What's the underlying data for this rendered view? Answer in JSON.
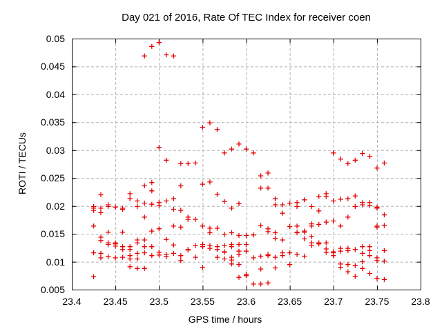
{
  "chart_data": {
    "type": "scatter",
    "title": "Day 021 of 2016, Rate Of TEC Index for receiver coen",
    "xlabel": "GPS time / hours",
    "ylabel": "ROTI / TECUs",
    "xlim": [
      23.4,
      23.8
    ],
    "ylim": [
      0.005,
      0.05
    ],
    "xticks": [
      23.4,
      23.45,
      23.5,
      23.55,
      23.6,
      23.65,
      23.7,
      23.75,
      23.8
    ],
    "xtick_labels": [
      "23.4",
      "23.45",
      "23.5",
      "23.55",
      "23.6",
      "23.65",
      "23.7",
      "23.75",
      "23.8"
    ],
    "yticks": [
      0.005,
      0.01,
      0.015,
      0.02,
      0.025,
      0.03,
      0.035,
      0.04,
      0.045,
      0.05
    ],
    "ytick_labels": [
      "0.005",
      "0.01",
      "0.015",
      "0.02",
      "0.025",
      "0.03",
      "0.035",
      "0.04",
      "0.045",
      "0.05"
    ],
    "grid": true,
    "legend": "none",
    "marker": "plus",
    "colors": {
      "points": "#e60000",
      "grid": "#b0b0b0",
      "axis": "#000000",
      "text": "#000000",
      "background": "#ffffff"
    },
    "series": [
      {
        "name": "ROTI",
        "points": [
          [
            23.425,
            0.0199
          ],
          [
            23.425,
            0.0196
          ],
          [
            23.425,
            0.0192
          ],
          [
            23.425,
            0.0164
          ],
          [
            23.425,
            0.0116
          ],
          [
            23.425,
            0.0073
          ],
          [
            23.4333,
            0.022
          ],
          [
            23.4333,
            0.0196
          ],
          [
            23.4333,
            0.0188
          ],
          [
            23.4333,
            0.0144
          ],
          [
            23.4333,
            0.0138
          ],
          [
            23.4333,
            0.0115
          ],
          [
            23.4333,
            0.0107
          ],
          [
            23.4417,
            0.0202
          ],
          [
            23.4417,
            0.0199
          ],
          [
            23.4417,
            0.0153
          ],
          [
            23.4417,
            0.0134
          ],
          [
            23.4417,
            0.0131
          ],
          [
            23.4417,
            0.0109
          ],
          [
            23.45,
            0.0198
          ],
          [
            23.45,
            0.0134
          ],
          [
            23.45,
            0.0132
          ],
          [
            23.45,
            0.0128
          ],
          [
            23.45,
            0.0107
          ],
          [
            23.4583,
            0.0196
          ],
          [
            23.4583,
            0.0194
          ],
          [
            23.4583,
            0.0153
          ],
          [
            23.4583,
            0.0127
          ],
          [
            23.4583,
            0.0122
          ],
          [
            23.4583,
            0.0108
          ],
          [
            23.4667,
            0.0222
          ],
          [
            23.4667,
            0.0213
          ],
          [
            23.4667,
            0.0127
          ],
          [
            23.4667,
            0.0122
          ],
          [
            23.4667,
            0.0111
          ],
          [
            23.4667,
            0.0105
          ],
          [
            23.4667,
            0.0091
          ],
          [
            23.475,
            0.0209
          ],
          [
            23.475,
            0.0199
          ],
          [
            23.475,
            0.0139
          ],
          [
            23.475,
            0.0134
          ],
          [
            23.475,
            0.0115
          ],
          [
            23.475,
            0.0105
          ],
          [
            23.475,
            0.0088
          ],
          [
            23.4833,
            0.0469
          ],
          [
            23.4833,
            0.0236
          ],
          [
            23.4833,
            0.0205
          ],
          [
            23.4833,
            0.018
          ],
          [
            23.4833,
            0.0139
          ],
          [
            23.4833,
            0.0127
          ],
          [
            23.4833,
            0.0116
          ],
          [
            23.4833,
            0.0088
          ],
          [
            23.4917,
            0.0486
          ],
          [
            23.4917,
            0.0242
          ],
          [
            23.4917,
            0.0227
          ],
          [
            23.4917,
            0.0203
          ],
          [
            23.4917,
            0.0155
          ],
          [
            23.4917,
            0.0127
          ],
          [
            23.4917,
            0.0111
          ],
          [
            23.5,
            0.0493
          ],
          [
            23.5,
            0.0305
          ],
          [
            23.5,
            0.0206
          ],
          [
            23.5,
            0.0201
          ],
          [
            23.5,
            0.0159
          ],
          [
            23.5,
            0.0117
          ],
          [
            23.5,
            0.0112
          ],
          [
            23.5083,
            0.0471
          ],
          [
            23.5083,
            0.0282
          ],
          [
            23.5083,
            0.0209
          ],
          [
            23.5083,
            0.014
          ],
          [
            23.5083,
            0.0113
          ],
          [
            23.5083,
            0.0109
          ],
          [
            23.5167,
            0.0469
          ],
          [
            23.5167,
            0.0213
          ],
          [
            23.5167,
            0.0194
          ],
          [
            23.5167,
            0.0164
          ],
          [
            23.5167,
            0.013
          ],
          [
            23.5167,
            0.0115
          ],
          [
            23.525,
            0.0276
          ],
          [
            23.525,
            0.0236
          ],
          [
            23.525,
            0.0192
          ],
          [
            23.525,
            0.0162
          ],
          [
            23.525,
            0.0111
          ],
          [
            23.525,
            0.0102
          ],
          [
            23.5333,
            0.0276
          ],
          [
            23.5333,
            0.018
          ],
          [
            23.5333,
            0.0176
          ],
          [
            23.5333,
            0.0122
          ],
          [
            23.5333,
            0.0121
          ],
          [
            23.5417,
            0.0277
          ],
          [
            23.5417,
            0.0176
          ],
          [
            23.5417,
            0.0129
          ],
          [
            23.5417,
            0.0108
          ],
          [
            23.55,
            0.0341
          ],
          [
            23.55,
            0.0239
          ],
          [
            23.55,
            0.0164
          ],
          [
            23.55,
            0.0131
          ],
          [
            23.55,
            0.0127
          ],
          [
            23.55,
            0.009
          ],
          [
            23.5583,
            0.0349
          ],
          [
            23.5583,
            0.0243
          ],
          [
            23.5583,
            0.016
          ],
          [
            23.5583,
            0.0152
          ],
          [
            23.5583,
            0.0129
          ],
          [
            23.5583,
            0.0124
          ],
          [
            23.5667,
            0.0337
          ],
          [
            23.5667,
            0.0221
          ],
          [
            23.5667,
            0.016
          ],
          [
            23.5667,
            0.0127
          ],
          [
            23.5667,
            0.0122
          ],
          [
            23.5667,
            0.0108
          ],
          [
            23.575,
            0.0295
          ],
          [
            23.575,
            0.0208
          ],
          [
            23.575,
            0.0149
          ],
          [
            23.575,
            0.0129
          ],
          [
            23.575,
            0.0118
          ],
          [
            23.575,
            0.0117
          ],
          [
            23.575,
            0.0105
          ],
          [
            23.5833,
            0.0302
          ],
          [
            23.5833,
            0.0196
          ],
          [
            23.5833,
            0.0152
          ],
          [
            23.5833,
            0.0131
          ],
          [
            23.5833,
            0.0127
          ],
          [
            23.5833,
            0.0108
          ],
          [
            23.5833,
            0.0103
          ],
          [
            23.5833,
            0.0096
          ],
          [
            23.5917,
            0.0311
          ],
          [
            23.5917,
            0.0204
          ],
          [
            23.5917,
            0.0147
          ],
          [
            23.5917,
            0.0131
          ],
          [
            23.5917,
            0.0119
          ],
          [
            23.5917,
            0.0113
          ],
          [
            23.5917,
            0.0095
          ],
          [
            23.5917,
            0.0072
          ],
          [
            23.6,
            0.0302
          ],
          [
            23.6,
            0.0147
          ],
          [
            23.6,
            0.0131
          ],
          [
            23.6,
            0.0119
          ],
          [
            23.6,
            0.0077
          ],
          [
            23.6,
            0.0075
          ],
          [
            23.6083,
            0.0295
          ],
          [
            23.6083,
            0.0148
          ],
          [
            23.6083,
            0.0107
          ],
          [
            23.6083,
            0.006
          ],
          [
            23.6167,
            0.0254
          ],
          [
            23.6167,
            0.0232
          ],
          [
            23.6167,
            0.0165
          ],
          [
            23.6167,
            0.011
          ],
          [
            23.6167,
            0.0087
          ],
          [
            23.6167,
            0.006
          ],
          [
            23.625,
            0.0259
          ],
          [
            23.625,
            0.0232
          ],
          [
            23.625,
            0.0159
          ],
          [
            23.625,
            0.0154
          ],
          [
            23.625,
            0.0113
          ],
          [
            23.625,
            0.0111
          ],
          [
            23.625,
            0.0062
          ],
          [
            23.6333,
            0.0213
          ],
          [
            23.6333,
            0.0202
          ],
          [
            23.6333,
            0.0152
          ],
          [
            23.6333,
            0.0142
          ],
          [
            23.6333,
            0.0108
          ],
          [
            23.6333,
            0.0089
          ],
          [
            23.6417,
            0.0202
          ],
          [
            23.6417,
            0.0187
          ],
          [
            23.6417,
            0.0139
          ],
          [
            23.6417,
            0.0116
          ],
          [
            23.6417,
            0.0111
          ],
          [
            23.65,
            0.0205
          ],
          [
            23.65,
            0.0163
          ],
          [
            23.65,
            0.0116
          ],
          [
            23.65,
            0.0095
          ],
          [
            23.6583,
            0.0206
          ],
          [
            23.6583,
            0.0199
          ],
          [
            23.6583,
            0.0164
          ],
          [
            23.6583,
            0.0153
          ],
          [
            23.6583,
            0.0152
          ],
          [
            23.6583,
            0.0113
          ],
          [
            23.6667,
            0.0211
          ],
          [
            23.6667,
            0.0155
          ],
          [
            23.6667,
            0.0153
          ],
          [
            23.6667,
            0.0141
          ],
          [
            23.6667,
            0.011
          ],
          [
            23.675,
            0.0199
          ],
          [
            23.675,
            0.0168
          ],
          [
            23.675,
            0.0164
          ],
          [
            23.675,
            0.0145
          ],
          [
            23.675,
            0.0134
          ],
          [
            23.675,
            0.0129
          ],
          [
            23.6833,
            0.0217
          ],
          [
            23.6833,
            0.0191
          ],
          [
            23.6833,
            0.0167
          ],
          [
            23.6833,
            0.0134
          ],
          [
            23.6833,
            0.0132
          ],
          [
            23.6917,
            0.0222
          ],
          [
            23.6917,
            0.0217
          ],
          [
            23.6917,
            0.0171
          ],
          [
            23.6917,
            0.0134
          ],
          [
            23.6917,
            0.0123
          ],
          [
            23.6917,
            0.0117
          ],
          [
            23.7,
            0.0295
          ],
          [
            23.7,
            0.0209
          ],
          [
            23.7,
            0.0173
          ],
          [
            23.7,
            0.0118
          ],
          [
            23.7,
            0.0116
          ],
          [
            23.7,
            0.0111
          ],
          [
            23.7083,
            0.0284
          ],
          [
            23.7083,
            0.0212
          ],
          [
            23.7083,
            0.0164
          ],
          [
            23.7083,
            0.0124
          ],
          [
            23.7083,
            0.0119
          ],
          [
            23.7083,
            0.0096
          ],
          [
            23.7083,
            0.009
          ],
          [
            23.7167,
            0.0276
          ],
          [
            23.7167,
            0.0213
          ],
          [
            23.7167,
            0.018
          ],
          [
            23.7167,
            0.0124
          ],
          [
            23.7167,
            0.012
          ],
          [
            23.7167,
            0.0095
          ],
          [
            23.7167,
            0.0082
          ],
          [
            23.725,
            0.0282
          ],
          [
            23.725,
            0.0218
          ],
          [
            23.725,
            0.0199
          ],
          [
            23.725,
            0.0122
          ],
          [
            23.725,
            0.0093
          ],
          [
            23.725,
            0.0074
          ],
          [
            23.7333,
            0.0294
          ],
          [
            23.7333,
            0.0206
          ],
          [
            23.7333,
            0.0202
          ],
          [
            23.7333,
            0.0127
          ],
          [
            23.7333,
            0.0115
          ],
          [
            23.7333,
            0.01
          ],
          [
            23.7333,
            0.0088
          ],
          [
            23.7417,
            0.0289
          ],
          [
            23.7417,
            0.0206
          ],
          [
            23.7417,
            0.0201
          ],
          [
            23.7417,
            0.0127
          ],
          [
            23.7417,
            0.012
          ],
          [
            23.7417,
            0.0111
          ],
          [
            23.7417,
            0.0079
          ],
          [
            23.75,
            0.0268
          ],
          [
            23.75,
            0.0198
          ],
          [
            23.75,
            0.0196
          ],
          [
            23.75,
            0.0164
          ],
          [
            23.75,
            0.0162
          ],
          [
            23.75,
            0.0107
          ],
          [
            23.75,
            0.0102
          ],
          [
            23.75,
            0.007
          ],
          [
            23.7583,
            0.0277
          ],
          [
            23.7583,
            0.0184
          ],
          [
            23.7583,
            0.0165
          ],
          [
            23.7583,
            0.012
          ],
          [
            23.7583,
            0.0101
          ],
          [
            23.7583,
            0.0068
          ]
        ]
      }
    ]
  }
}
